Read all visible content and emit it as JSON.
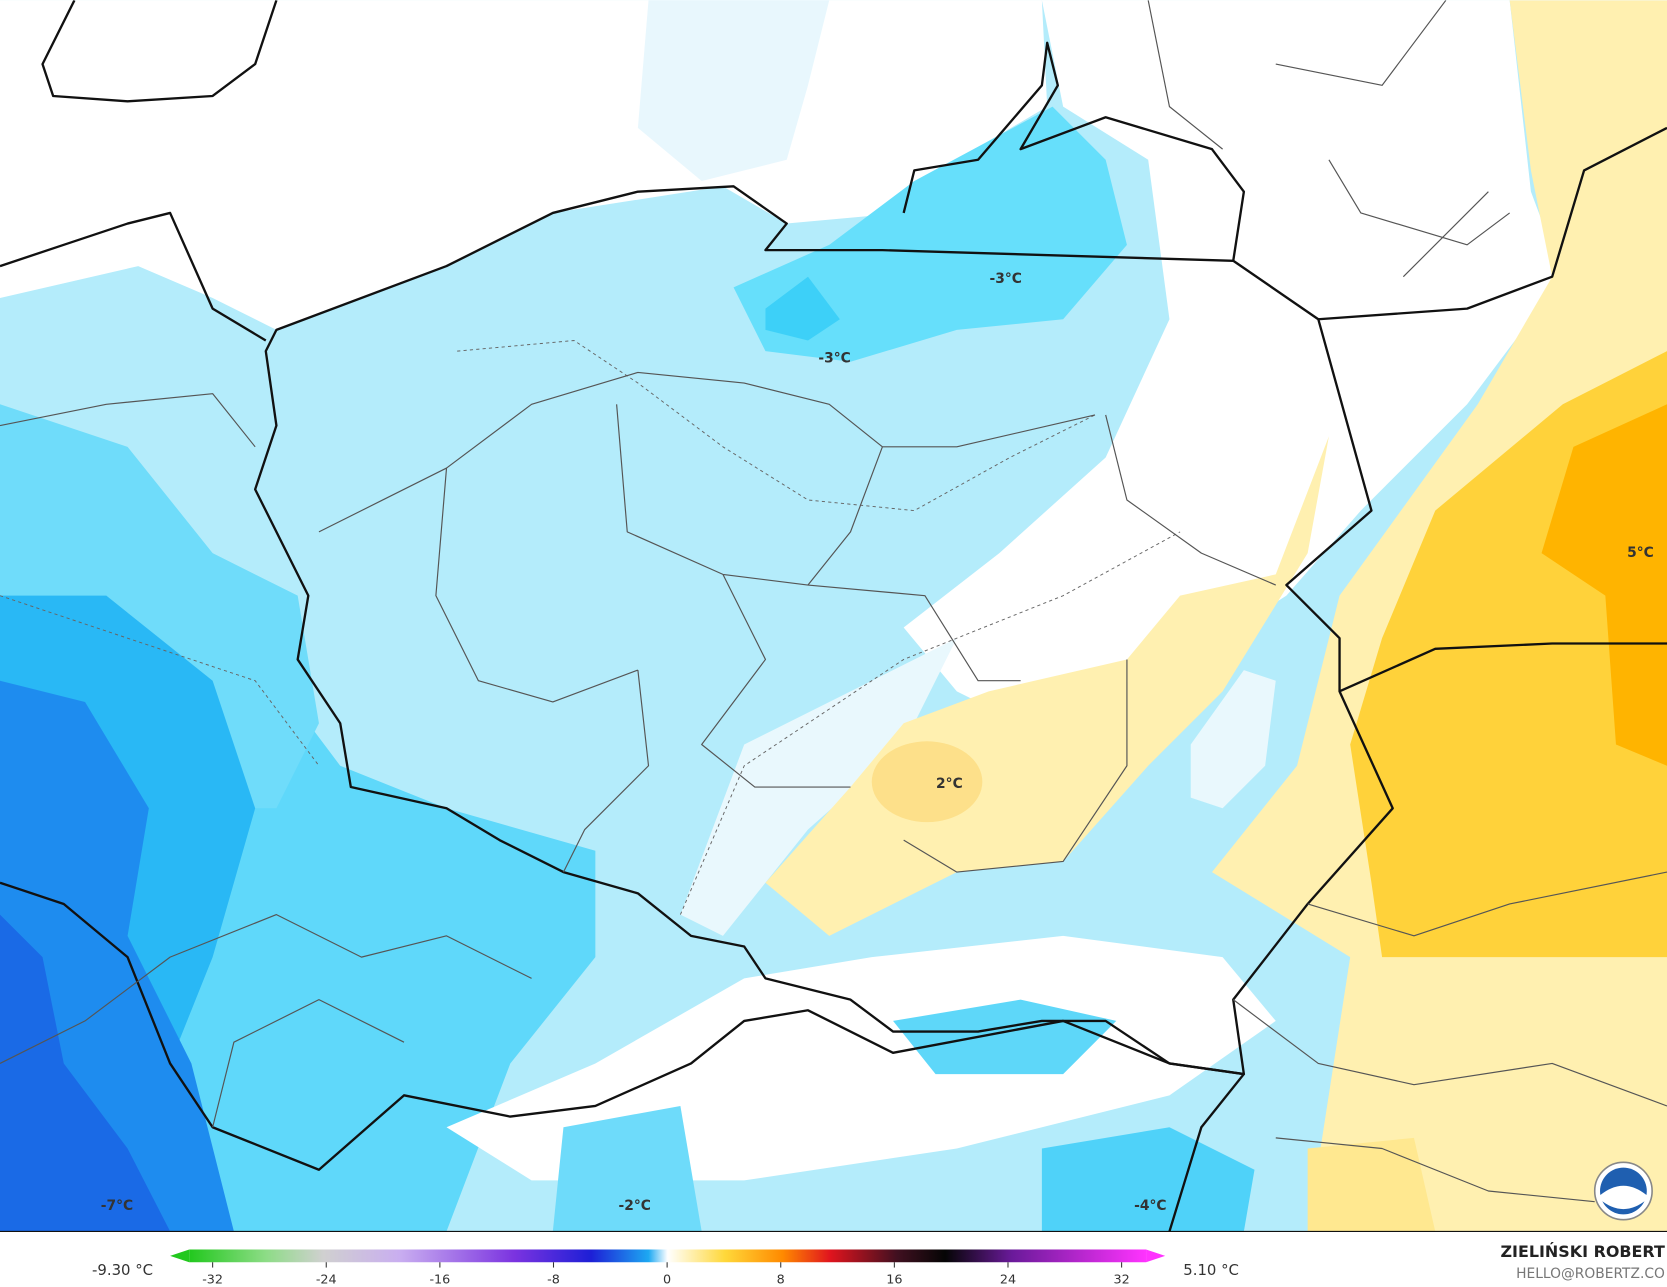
{
  "map": {
    "contour_labels": [
      "-3°C",
      "-3°C",
      "2°C",
      "5°C",
      "-7°C",
      "-2°C",
      "-4°C"
    ]
  },
  "colorbar": {
    "min_label": "-9.30 °C",
    "max_label": "5.10 °C",
    "range": [
      -32,
      32
    ],
    "ticks": [
      -32,
      -24,
      -16,
      -8,
      0,
      8,
      16,
      24,
      32
    ]
  },
  "credit": {
    "name": "ZIELIŃSKI ROBERT",
    "email": "HELLO@ROBERTZ.CO"
  }
}
